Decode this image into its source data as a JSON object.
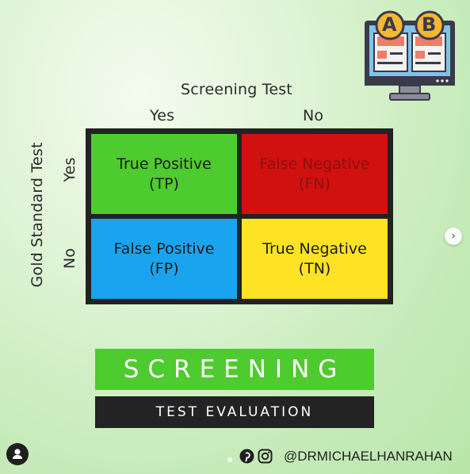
{
  "top_axis": {
    "title": "Screening Test",
    "yes": "Yes",
    "no": "No"
  },
  "side_axis": {
    "title": "Gold Standard Test",
    "yes": "Yes",
    "no": "No"
  },
  "cells": {
    "tp": {
      "line1": "True Positive",
      "line2": "(TP)"
    },
    "fn": {
      "line1": "False Negative",
      "line2": "(FN)"
    },
    "fp": {
      "line1": "False Positive",
      "line2": "(FP)"
    },
    "tn": {
      "line1": "True Negative",
      "line2": "(TN)"
    }
  },
  "banner": {
    "title": "SCREENING",
    "subtitle": "TEST EVALUATION"
  },
  "footer": {
    "handle": "@DRMICHAELHANRAHAN"
  },
  "ab_icon": {
    "a": "A",
    "b": "B"
  },
  "colors": {
    "tp": "#4ecb2e",
    "fn": "#d11010",
    "fp": "#1aa4f0",
    "tn": "#fde323",
    "banner": "#4ecb2e",
    "banner_dark": "#232323"
  },
  "icons": [
    "ab-test-monitor-icon",
    "pinterest-icon",
    "instagram-icon",
    "chevron-right-icon",
    "user-icon"
  ]
}
